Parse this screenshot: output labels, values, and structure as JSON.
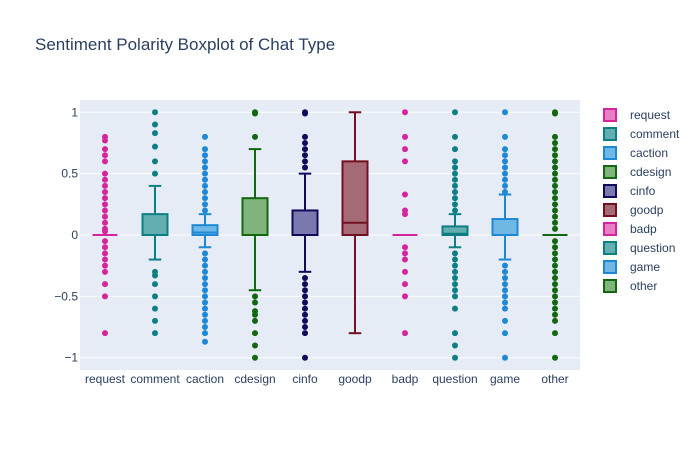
{
  "chart_data": {
    "type": "box",
    "title": "Sentiment Polarity Boxplot of Chat Type",
    "xlabel": "",
    "ylabel": "",
    "ylim": [
      -1.1,
      1.1
    ],
    "yticks": [
      1,
      0.5,
      0,
      -0.5,
      -1
    ],
    "ytick_labels": [
      "1",
      "0.5",
      "0",
      "−0.5",
      "−1"
    ],
    "grid": true,
    "legend_position": "right",
    "categories": [
      "request",
      "comment",
      "caction",
      "cdesign",
      "cinfo",
      "goodp",
      "badp",
      "question",
      "game",
      "other"
    ],
    "series": [
      {
        "name": "request",
        "color": "#d6249f",
        "fill": "#e87fc4",
        "q1": 0,
        "median": 0,
        "q3": 0,
        "lower": 0,
        "upper": 0,
        "outliers": [
          0.8,
          0.77,
          0.7,
          0.65,
          0.6,
          0.5,
          0.45,
          0.4,
          0.35,
          0.3,
          0.25,
          0.2,
          0.15,
          0.1,
          0.05,
          0.03,
          -0.05,
          -0.1,
          -0.15,
          -0.2,
          -0.25,
          -0.3,
          -0.4,
          -0.5,
          -0.8
        ]
      },
      {
        "name": "comment",
        "color": "#0d7f84",
        "fill": "#63aeb0",
        "q1": 0,
        "median": 0,
        "q3": 0.17,
        "lower": -0.2,
        "upper": 0.4,
        "outliers": [
          1,
          0.9,
          0.83,
          0.72,
          0.6,
          0.5,
          -0.3,
          -0.33,
          -0.4,
          -0.5,
          -0.6,
          -0.7,
          -0.8
        ]
      },
      {
        "name": "caction",
        "color": "#1e88d4",
        "fill": "#6fb8e6",
        "q1": 0,
        "median": 0.02,
        "q3": 0.08,
        "lower": -0.1,
        "upper": 0.17,
        "outliers": [
          0.8,
          0.7,
          0.65,
          0.6,
          0.55,
          0.5,
          0.45,
          0.4,
          0.35,
          0.3,
          0.25,
          0.2,
          -0.15,
          -0.2,
          -0.25,
          -0.3,
          -0.35,
          -0.4,
          -0.45,
          -0.5,
          -0.55,
          -0.6,
          -0.65,
          -0.7,
          -0.75,
          -0.8,
          -0.87
        ]
      },
      {
        "name": "cdesign",
        "color": "#13670f",
        "fill": "#80b47d",
        "q1": 0,
        "median": 0,
        "q3": 0.3,
        "lower": -0.45,
        "upper": 0.7,
        "outliers": [
          1,
          0.99,
          0.8,
          -0.5,
          -0.55,
          -0.62,
          -0.65,
          -0.7,
          -0.8,
          -0.9,
          -1
        ]
      },
      {
        "name": "cinfo",
        "color": "#0f0b5c",
        "fill": "#7a78ad",
        "q1": 0,
        "median": 0,
        "q3": 0.2,
        "lower": -0.3,
        "upper": 0.5,
        "outliers": [
          1,
          0.99,
          0.8,
          0.75,
          0.7,
          0.65,
          0.6,
          0.55,
          -0.35,
          -0.4,
          -0.45,
          -0.5,
          -0.55,
          -0.6,
          -0.65,
          -0.7,
          -0.75,
          -0.8,
          -1
        ]
      },
      {
        "name": "goodp",
        "color": "#731021",
        "fill": "#a66a77",
        "q1": 0,
        "median": 0.1,
        "q3": 0.6,
        "lower": -0.8,
        "upper": 1,
        "outliers": []
      },
      {
        "name": "badp",
        "color": "#d6249f",
        "fill": "#e87fc4",
        "q1": 0,
        "median": 0,
        "q3": 0,
        "lower": 0,
        "upper": 0,
        "outliers": [
          1,
          0.8,
          0.7,
          0.6,
          0.33,
          0.2,
          0.17,
          -0.1,
          -0.15,
          -0.2,
          -0.3,
          -0.4,
          -0.5,
          -0.8
        ]
      },
      {
        "name": "question",
        "color": "#0d7f84",
        "fill": "#63aeb0",
        "q1": 0,
        "median": 0.01,
        "q3": 0.07,
        "lower": -0.1,
        "upper": 0.17,
        "outliers": [
          1,
          0.8,
          0.7,
          0.6,
          0.55,
          0.5,
          0.45,
          0.4,
          0.35,
          0.3,
          0.25,
          0.2,
          -0.15,
          -0.2,
          -0.25,
          -0.3,
          -0.35,
          -0.4,
          -0.45,
          -0.5,
          -0.6,
          -0.8,
          -0.9,
          -1
        ]
      },
      {
        "name": "game",
        "color": "#1e88d4",
        "fill": "#6fb8e6",
        "q1": 0,
        "median": 0,
        "q3": 0.13,
        "lower": -0.2,
        "upper": 0.33,
        "outliers": [
          1,
          0.8,
          0.7,
          0.65,
          0.6,
          0.55,
          0.5,
          0.45,
          0.4,
          0.35,
          -0.25,
          -0.3,
          -0.35,
          -0.4,
          -0.45,
          -0.5,
          -0.55,
          -0.6,
          -0.7,
          -0.8,
          -1
        ]
      },
      {
        "name": "other",
        "color": "#13670f",
        "fill": "#80b47d",
        "q1": 0,
        "median": 0,
        "q3": 0,
        "lower": 0,
        "upper": 0,
        "outliers": [
          1,
          0.99,
          0.8,
          0.75,
          0.7,
          0.65,
          0.6,
          0.55,
          0.5,
          0.45,
          0.4,
          0.35,
          0.3,
          0.25,
          0.2,
          0.15,
          0.1,
          0.05,
          -0.05,
          -0.1,
          -0.15,
          -0.2,
          -0.25,
          -0.3,
          -0.35,
          -0.4,
          -0.45,
          -0.5,
          -0.55,
          -0.6,
          -0.65,
          -0.7,
          -0.8,
          -1
        ]
      }
    ]
  }
}
